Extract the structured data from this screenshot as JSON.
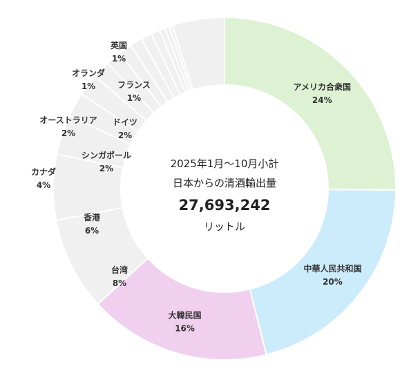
{
  "chart_data": {
    "type": "donut",
    "center": {
      "line1": "2025年1月〜10月小計",
      "line2": "日本からの清酒輸出量",
      "total": "27,693,242",
      "unit": "リットル"
    },
    "segments": [
      {
        "name": "アメリカ合衆国",
        "percent_label": "24%",
        "value": 24.0,
        "color": "#dcf2d2"
      },
      {
        "name": "中華人民共和国",
        "percent_label": "20%",
        "value": 20.0,
        "color": "#ccecfb"
      },
      {
        "name": "大韓民国",
        "percent_label": "16%",
        "value": 16.4,
        "color": "#f0d0ee"
      },
      {
        "name": "台湾",
        "percent_label": "8%",
        "value": 8.4,
        "color": "#f0f0f0"
      },
      {
        "name": "香港",
        "percent_label": "6%",
        "value": 5.9,
        "color": "#f0f0f0"
      },
      {
        "name": "カナダ",
        "percent_label": "4%",
        "value": 3.6,
        "color": "#f0f0f0"
      },
      {
        "name": "シンガポール",
        "percent_label": "2%",
        "value": 2.2,
        "color": "#f0f0f0"
      },
      {
        "name": "オーストラリア",
        "percent_label": "2%",
        "value": 2.0,
        "color": "#f0f0f0"
      },
      {
        "name": "ドイツ",
        "percent_label": "2%",
        "value": 1.6,
        "color": "#f0f0f0"
      },
      {
        "name": "フランス",
        "percent_label": "1%",
        "value": 1.4,
        "color": "#f0f0f0"
      },
      {
        "name": "オランダ",
        "percent_label": "1%",
        "value": 1.2,
        "color": "#f0f0f0"
      },
      {
        "name": "英国",
        "percent_label": "1%",
        "value": 1.1,
        "color": "#f0f0f0"
      },
      {
        "name": "",
        "percent_label": "",
        "value": 1.0,
        "color": "#f0f0f0"
      },
      {
        "name": "",
        "percent_label": "",
        "value": 0.8,
        "color": "#f0f0f0"
      },
      {
        "name": "",
        "percent_label": "",
        "value": 0.5,
        "color": "#f0f0f0"
      },
      {
        "name": "",
        "percent_label": "",
        "value": 0.4,
        "color": "#f0f0f0"
      },
      {
        "name": "",
        "percent_label": "",
        "value": 0.3,
        "color": "#f0f0f0"
      },
      {
        "name": "",
        "percent_label": "",
        "value": 4.7,
        "color": "#f0f0f0"
      }
    ]
  }
}
